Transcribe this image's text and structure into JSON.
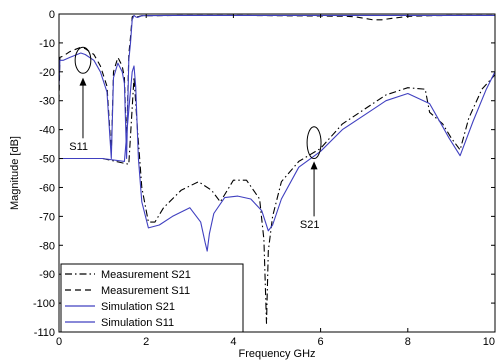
{
  "chart_data": {
    "type": "line",
    "title": "",
    "xlabel": "Frequency GHz",
    "ylabel": "Magnitude [dB]",
    "xlim": [
      0,
      10
    ],
    "ylim": [
      -110,
      0
    ],
    "xticks": [
      "0",
      "2",
      "4",
      "6",
      "8",
      "10"
    ],
    "yticks": [
      "0",
      "-10",
      "-20",
      "-30",
      "-40",
      "-50",
      "-60",
      "-70",
      "-80",
      "-90",
      "-100",
      "-110"
    ],
    "grid": false,
    "legend_position": "bottom-left",
    "series": [
      {
        "name": "Measurement S21",
        "color": "#000000",
        "style": "dashdot",
        "x": [
          0,
          1.0,
          1.6,
          1.72,
          1.8,
          1.9,
          2.05,
          2.2,
          2.4,
          2.8,
          3.2,
          3.5,
          3.7,
          4.0,
          4.3,
          4.6,
          4.7,
          4.76,
          4.8,
          4.9,
          5.1,
          5.5,
          6.0,
          6.5,
          7.0,
          7.5,
          8.0,
          8.4,
          8.5,
          8.8,
          9.0,
          9.2,
          9.4,
          9.7,
          10
        ],
        "values": [
          -50,
          -50,
          -52,
          -22,
          -40,
          -60,
          -72,
          -72,
          -67,
          -61,
          -58,
          -61,
          -65,
          -57.5,
          -57.5,
          -64,
          -78,
          -107,
          -82,
          -70,
          -58,
          -51,
          -46.5,
          -38,
          -33,
          -28,
          -25.5,
          -26,
          -34,
          -38,
          -43,
          -47,
          -36,
          -26,
          -21
        ]
      },
      {
        "name": "Measurement S11",
        "color": "#000000",
        "style": "dashed",
        "x": [
          0,
          0.02,
          0.1,
          0.25,
          0.5,
          0.6,
          0.8,
          0.95,
          1.1,
          1.2,
          1.25,
          1.35,
          1.45,
          1.5,
          1.55,
          1.6,
          1.64,
          1.68,
          1.72,
          1.76,
          1.8,
          1.9,
          2.2,
          2.8,
          3.5,
          4.2,
          5.0,
          6.0,
          6.6,
          6.8,
          7.0,
          7.2,
          7.4,
          7.6,
          7.8,
          8.0,
          8.5,
          9.0,
          9.5,
          10
        ],
        "values": [
          -30,
          -15,
          -14.5,
          -13,
          -11.5,
          -12,
          -14,
          -18,
          -25,
          -48,
          -20,
          -15,
          -18,
          -22,
          -45,
          -14,
          -8,
          -1,
          -0.5,
          -0.8,
          -1,
          -0.6,
          -0.6,
          -0.5,
          -0.5,
          -0.5,
          -0.6,
          -0.7,
          -0.8,
          -1,
          -1.5,
          -2,
          -2,
          -1.6,
          -1.2,
          -0.8,
          -0.6,
          -0.5,
          -0.5,
          -0.5
        ]
      },
      {
        "name": "Simulation S21",
        "color": "#4040c0",
        "style": "solid",
        "x": [
          0,
          1.0,
          1.5,
          1.62,
          1.68,
          1.72,
          1.76,
          1.82,
          1.9,
          2.05,
          2.3,
          2.6,
          3.0,
          3.25,
          3.35,
          3.4,
          3.45,
          3.55,
          3.8,
          4.1,
          4.4,
          4.65,
          4.8,
          4.9,
          5.1,
          5.5,
          6.0,
          6.5,
          7.0,
          7.5,
          8.0,
          8.5,
          8.8,
          8.95,
          9.2,
          9.5,
          9.8,
          10
        ],
        "values": [
          -50,
          -50,
          -51,
          -30,
          -20,
          -18,
          -25,
          -50,
          -65,
          -74,
          -73,
          -70,
          -67,
          -72,
          -79,
          -82,
          -76,
          -69,
          -63.5,
          -63,
          -64,
          -68,
          -75,
          -73,
          -64,
          -53,
          -47.5,
          -40,
          -35,
          -30,
          -27.5,
          -31,
          -39,
          -43,
          -49,
          -37,
          -26,
          -20
        ]
      },
      {
        "name": "Simulation S11",
        "color": "#4040c0",
        "style": "solid",
        "x": [
          0,
          0.02,
          0.1,
          0.25,
          0.5,
          0.6,
          0.8,
          0.95,
          1.1,
          1.2,
          1.25,
          1.35,
          1.45,
          1.5,
          1.55,
          1.6,
          1.64,
          1.68,
          1.72,
          1.76,
          1.8,
          1.9,
          2.5,
          3.5,
          4.5,
          5.5,
          6.5,
          7.5,
          8.5,
          9.5,
          10
        ],
        "values": [
          -25,
          -16,
          -16,
          -15,
          -13.5,
          -14,
          -16,
          -20,
          -27,
          -50,
          -22,
          -17,
          -20,
          -24,
          -50,
          -16,
          -10,
          -2,
          -0.5,
          -1,
          -1.2,
          -0.6,
          -0.5,
          -0.5,
          -0.5,
          -0.5,
          -0.5,
          -0.5,
          -0.5,
          -0.5,
          -0.5
        ]
      }
    ],
    "annotations": [
      {
        "text": "S11",
        "ellipse_center": [
          0.55,
          -16
        ],
        "ellipse_radius": [
          0.18,
          4.5
        ],
        "arrow_from": [
          0.55,
          -43
        ],
        "arrow_to": [
          0.55,
          -22
        ],
        "text_at": [
          0.45,
          -47
        ]
      },
      {
        "text": "S21",
        "ellipse_center": [
          5.85,
          -44.5
        ],
        "ellipse_radius": [
          0.16,
          5.5
        ],
        "arrow_from": [
          5.85,
          -70
        ],
        "arrow_to": [
          5.85,
          -51
        ],
        "text_at": [
          5.75,
          -74
        ]
      }
    ]
  }
}
